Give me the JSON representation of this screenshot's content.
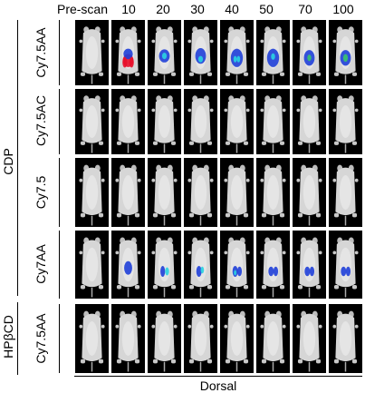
{
  "columns": [
    "Pre-scan",
    "10",
    "20",
    "30",
    "40",
    "50",
    "70",
    "100"
  ],
  "groups": [
    {
      "label": "CDP",
      "rows": [
        "Cy7.5AA",
        "Cy7.5AC",
        "Cy7.5",
        "Cy7AA"
      ]
    },
    {
      "label": "HPβCD",
      "rows": [
        "Cy7.5AA"
      ]
    }
  ],
  "footer": "Dorsal",
  "signal_colors": {
    "red": "#e8102a",
    "blue": "#1f3fd8",
    "cyan": "#29d3e0",
    "green": "#39c46b"
  }
}
